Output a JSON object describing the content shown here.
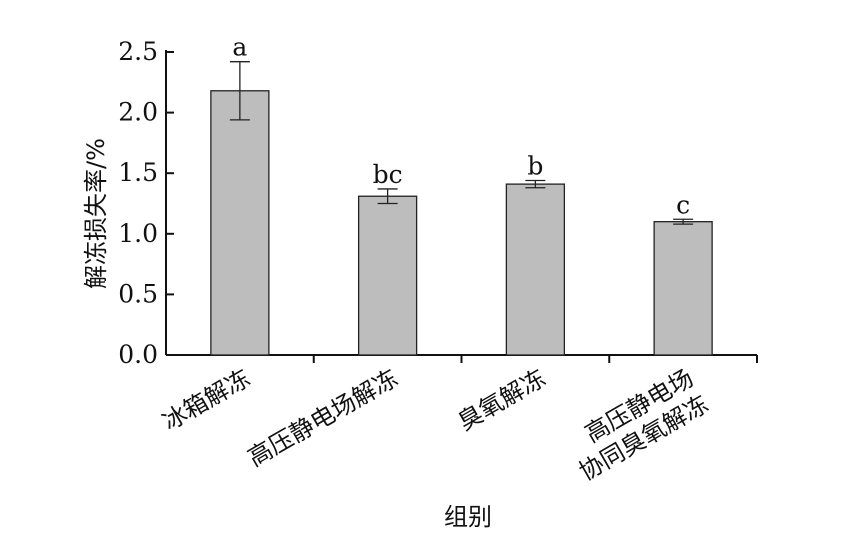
{
  "chart_data": {
    "type": "bar",
    "categories": [
      [
        "冰箱解冻"
      ],
      [
        "高压静电场解冻"
      ],
      [
        "臭氧解冻"
      ],
      [
        "高压静电场",
        "协同臭氧解冻"
      ]
    ],
    "values": [
      2.18,
      1.31,
      1.41,
      1.1
    ],
    "error": [
      0.24,
      0.06,
      0.03,
      0.02
    ],
    "significance": [
      "a",
      "bc",
      "b",
      "c"
    ],
    "xlabel": "组别",
    "ylabel": "解冻损失率/%",
    "ylim": [
      0,
      2.5
    ],
    "yticks": [
      "0.0",
      "0.5",
      "1.0",
      "1.5",
      "2.0",
      "2.5"
    ],
    "grid": false,
    "bar_color": "#bdbdbd"
  }
}
